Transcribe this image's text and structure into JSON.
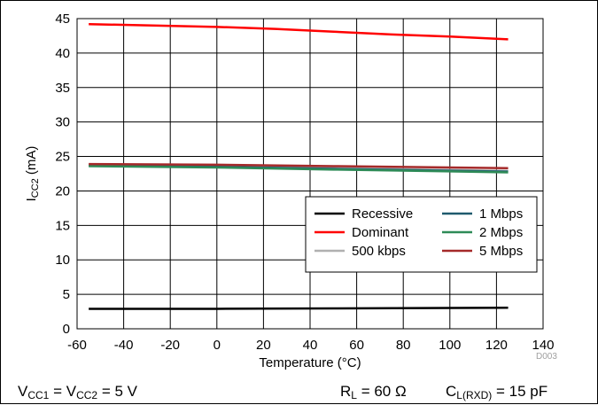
{
  "chart_data": {
    "type": "line",
    "xlabel": "Temperature (°C)",
    "ylabel_main": "I",
    "ylabel_sub": "CC2",
    "ylabel_unit": " (mA)",
    "xlim": [
      -60,
      140
    ],
    "ylim": [
      0,
      45
    ],
    "xticks": [
      -60,
      -40,
      -20,
      0,
      20,
      40,
      60,
      80,
      100,
      120,
      140
    ],
    "yticks": [
      0,
      5,
      10,
      15,
      20,
      25,
      30,
      35,
      40,
      45
    ],
    "grid": true,
    "legend_position": "right, lower-middle",
    "series": [
      {
        "name": "Recessive",
        "color": "#000000",
        "x": [
          -55,
          0,
          50,
          125
        ],
        "y": [
          2.9,
          2.9,
          2.95,
          3.05
        ]
      },
      {
        "name": "Dominant",
        "color": "#ff0000",
        "x": [
          -55,
          0,
          25,
          50,
          75,
          100,
          125
        ],
        "y": [
          44.2,
          43.8,
          43.5,
          43.1,
          42.7,
          42.4,
          42.0
        ]
      },
      {
        "name": "500 kbps",
        "color": "#b0b0b0",
        "x": [
          -55,
          0,
          50,
          125
        ],
        "y": [
          23.8,
          23.6,
          23.3,
          22.9
        ]
      },
      {
        "name": "1 Mbps",
        "color": "#1f5a6e",
        "x": [
          -55,
          0,
          50,
          125
        ],
        "y": [
          23.7,
          23.5,
          23.2,
          22.8
        ]
      },
      {
        "name": "2 Mbps",
        "color": "#2e8b57",
        "x": [
          -55,
          0,
          50,
          125
        ],
        "y": [
          23.6,
          23.4,
          23.1,
          22.7
        ]
      },
      {
        "name": "5 Mbps",
        "color": "#a52a2a",
        "x": [
          -55,
          0,
          50,
          125
        ],
        "y": [
          23.9,
          23.8,
          23.6,
          23.3
        ]
      }
    ],
    "legend_order": [
      "Recessive",
      "1 Mbps",
      "Dominant",
      "2 Mbps",
      "500 kbps",
      "5 Mbps"
    ]
  },
  "conditions": {
    "vcc": {
      "v1": "V",
      "s1": "CC1",
      "mid": " = V",
      "s2": "CC2",
      "tail": " = 5 V"
    },
    "rl": {
      "r": "R",
      "s": "L",
      "tail": " = 60 Ω"
    },
    "cl": {
      "c": "C",
      "s": "L(RXD)",
      "tail": " = 15 pF"
    }
  },
  "figure_code": "D003"
}
